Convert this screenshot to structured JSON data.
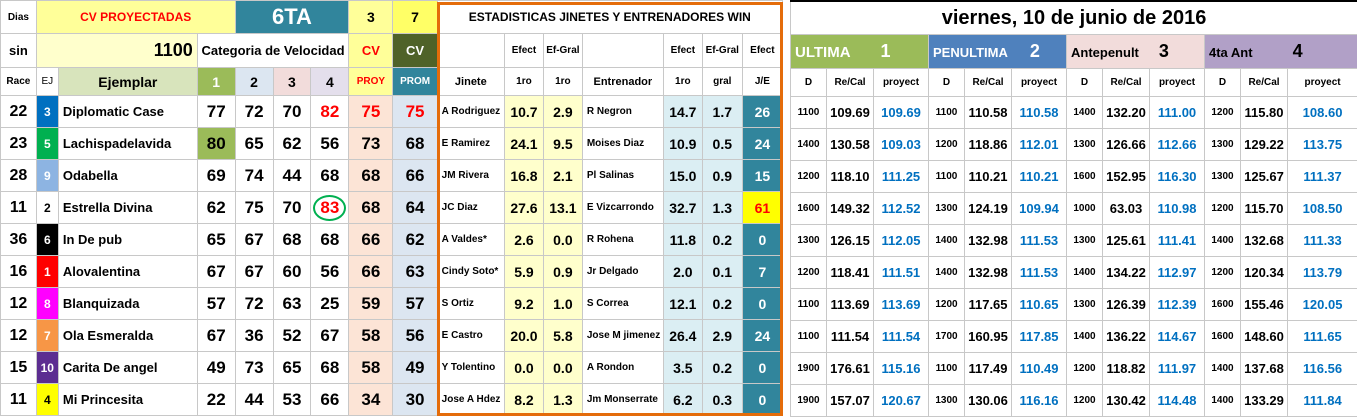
{
  "header": {
    "dias": "Dias",
    "cv_proyectadas": "CV PROYECTADAS",
    "race_name": "6TA",
    "col_num_3": "3",
    "col_num_7": "7",
    "estadisticas_title": "ESTADISTICAS JINETES Y ENTRENADORES WIN",
    "sin": "sin",
    "distance": "1100",
    "categoria": "Categoria de Velocidad",
    "cv1": "CV",
    "cv2": "CV",
    "efect": "Efect",
    "efgral": "Ef-Gral",
    "race": "Race",
    "ej": "EJ",
    "ejemplar": "Ejemplar",
    "c1": "1",
    "c2": "2",
    "c3": "3",
    "c4": "4",
    "proy": "PROY",
    "prom": "PROM",
    "jinete": "Jinete",
    "uno_ro": "1ro",
    "entrenador": "Entrenador",
    "gral": "gral",
    "je": "J/E"
  },
  "right_header": {
    "date": "viernes, 10 de junio de 2016",
    "ultima": "ULTIMA",
    "ultima_n": "1",
    "penultima": "PENULTIMA",
    "penultima_n": "2",
    "antepenult": "Antepenult",
    "antepenult_n": "3",
    "cuarta": "4ta Ant",
    "cuarta_n": "4",
    "d": "D",
    "recal": "Re/Cal",
    "proyect": "proyect"
  },
  "rows": [
    {
      "race": "22",
      "ej": "3",
      "ej_bg": "#0070c0",
      "ej_fg": "#ffffff",
      "name": "Diplomatic Case",
      "v1": "77",
      "v2": "72",
      "v3": "70",
      "v4": "82",
      "proy": "75",
      "prom": "75",
      "jinete": "A Rodriguez",
      "j1": "10.7",
      "jg": "2.9",
      "entrenador": "R Negron",
      "e1": "14.7",
      "eg": "1.7",
      "je": "26",
      "races": [
        [
          "1100",
          "109.69",
          "109.69"
        ],
        [
          "1100",
          "110.58",
          "110.58"
        ],
        [
          "1400",
          "132.20",
          "111.00"
        ],
        [
          "1200",
          "115.80",
          "108.60"
        ]
      ]
    },
    {
      "race": "23",
      "ej": "5",
      "ej_bg": "#00b050",
      "ej_fg": "#ffffff",
      "name": "Lachispadelavida",
      "v1": "80",
      "v2": "65",
      "v3": "62",
      "v4": "56",
      "proy": "73",
      "prom": "68",
      "jinete": "E Ramirez",
      "j1": "24.1",
      "jg": "9.5",
      "entrenador": "Moises Diaz",
      "e1": "10.9",
      "eg": "0.5",
      "je": "24",
      "races": [
        [
          "1400",
          "130.58",
          "109.03"
        ],
        [
          "1200",
          "118.86",
          "112.01"
        ],
        [
          "1300",
          "126.66",
          "112.66"
        ],
        [
          "1300",
          "129.22",
          "113.75"
        ]
      ]
    },
    {
      "race": "28",
      "ej": "9",
      "ej_bg": "#8db4e2",
      "ej_fg": "#ffffff",
      "name": "Odabella",
      "v1": "69",
      "v2": "74",
      "v3": "44",
      "v4": "68",
      "proy": "68",
      "prom": "66",
      "jinete": "JM Rivera",
      "j1": "16.8",
      "jg": "2.1",
      "entrenador": "Pl Salinas",
      "e1": "15.0",
      "eg": "0.9",
      "je": "15",
      "races": [
        [
          "1200",
          "118.10",
          "111.25"
        ],
        [
          "1100",
          "110.21",
          "110.21"
        ],
        [
          "1600",
          "152.95",
          "116.30"
        ],
        [
          "1300",
          "125.67",
          "111.37"
        ]
      ]
    },
    {
      "race": "11",
      "ej": "2",
      "ej_bg": "#ffffff",
      "ej_fg": "#000000",
      "name": "Estrella Divina",
      "v1": "62",
      "v2": "75",
      "v3": "70",
      "v4": "83",
      "proy": "68",
      "prom": "64",
      "jinete": "JC Diaz",
      "j1": "27.6",
      "jg": "13.1",
      "entrenador": "E Vizcarrondo",
      "e1": "32.7",
      "eg": "1.3",
      "je": "61",
      "races": [
        [
          "1600",
          "149.32",
          "112.52"
        ],
        [
          "1300",
          "124.19",
          "109.94"
        ],
        [
          "1000",
          "63.03",
          "110.98"
        ],
        [
          "1200",
          "115.70",
          "108.50"
        ]
      ]
    },
    {
      "race": "36",
      "ej": "6",
      "ej_bg": "#000000",
      "ej_fg": "#ffffff",
      "name": "In De pub",
      "v1": "65",
      "v2": "67",
      "v3": "68",
      "v4": "68",
      "proy": "66",
      "prom": "62",
      "jinete": "A Valdes*",
      "j1": "2.6",
      "jg": "0.0",
      "entrenador": "R Rohena",
      "e1": "11.8",
      "eg": "0.2",
      "je": "0",
      "races": [
        [
          "1300",
          "126.15",
          "112.05"
        ],
        [
          "1400",
          "132.98",
          "111.53"
        ],
        [
          "1300",
          "125.61",
          "111.41"
        ],
        [
          "1400",
          "132.68",
          "111.33"
        ]
      ]
    },
    {
      "race": "16",
      "ej": "1",
      "ej_bg": "#ff0000",
      "ej_fg": "#ffffff",
      "name": "Alovalentina",
      "v1": "67",
      "v2": "67",
      "v3": "60",
      "v4": "56",
      "proy": "66",
      "prom": "63",
      "jinete": "Cindy Soto*",
      "j1": "5.9",
      "jg": "0.9",
      "entrenador": "Jr Delgado",
      "e1": "2.0",
      "eg": "0.1",
      "je": "7",
      "races": [
        [
          "1200",
          "118.41",
          "111.51"
        ],
        [
          "1400",
          "132.98",
          "111.53"
        ],
        [
          "1400",
          "134.22",
          "112.97"
        ],
        [
          "1200",
          "120.34",
          "113.79"
        ]
      ]
    },
    {
      "race": "12",
      "ej": "8",
      "ej_bg": "#ff00ff",
      "ej_fg": "#ffffff",
      "name": "Blanquizada",
      "v1": "57",
      "v2": "72",
      "v3": "63",
      "v4": "25",
      "proy": "59",
      "prom": "57",
      "jinete": "S Ortiz",
      "j1": "9.2",
      "jg": "1.0",
      "entrenador": "S Correa",
      "e1": "12.1",
      "eg": "0.2",
      "je": "0",
      "races": [
        [
          "1100",
          "113.69",
          "113.69"
        ],
        [
          "1200",
          "117.65",
          "110.65"
        ],
        [
          "1300",
          "126.39",
          "112.39"
        ],
        [
          "1600",
          "155.46",
          "120.05"
        ]
      ]
    },
    {
      "race": "12",
      "ej": "7",
      "ej_bg": "#f79646",
      "ej_fg": "#ffffff",
      "name": "Ola Esmeralda",
      "v1": "67",
      "v2": "36",
      "v3": "52",
      "v4": "67",
      "proy": "58",
      "prom": "56",
      "jinete": "E Castro",
      "j1": "20.0",
      "jg": "5.8",
      "entrenador": "Jose M jimenez",
      "e1": "26.4",
      "eg": "2.9",
      "je": "24",
      "races": [
        [
          "1100",
          "111.54",
          "111.54"
        ],
        [
          "1700",
          "160.95",
          "117.85"
        ],
        [
          "1400",
          "136.22",
          "114.67"
        ],
        [
          "1600",
          "148.60",
          "111.65"
        ]
      ]
    },
    {
      "race": "15",
      "ej": "10",
      "ej_bg": "#5c2d91",
      "ej_fg": "#ffffff",
      "name": "Carita De angel",
      "v1": "49",
      "v2": "73",
      "v3": "65",
      "v4": "68",
      "proy": "58",
      "prom": "49",
      "jinete": "Y Tolentino",
      "j1": "0.0",
      "jg": "0.0",
      "entrenador": "A Rondon",
      "e1": "3.5",
      "eg": "0.2",
      "je": "0",
      "races": [
        [
          "1900",
          "176.61",
          "115.16"
        ],
        [
          "1100",
          "117.49",
          "110.49"
        ],
        [
          "1200",
          "118.82",
          "111.97"
        ],
        [
          "1400",
          "137.68",
          "116.56"
        ]
      ]
    },
    {
      "race": "11",
      "ej": "4",
      "ej_bg": "#ffff00",
      "ej_fg": "#000000",
      "name": "Mi Princesita",
      "v1": "22",
      "v2": "44",
      "v3": "53",
      "v4": "66",
      "proy": "34",
      "prom": "30",
      "jinete": "Jose A Hdez",
      "j1": "8.2",
      "jg": "1.3",
      "entrenador": "Jm Monserrate",
      "e1": "6.2",
      "eg": "0.3",
      "je": "0",
      "races": [
        [
          "1900",
          "157.07",
          "120.67"
        ],
        [
          "1300",
          "130.06",
          "116.16"
        ],
        [
          "1200",
          "130.42",
          "114.48"
        ],
        [
          "1400",
          "133.29",
          "111.84"
        ]
      ]
    }
  ]
}
